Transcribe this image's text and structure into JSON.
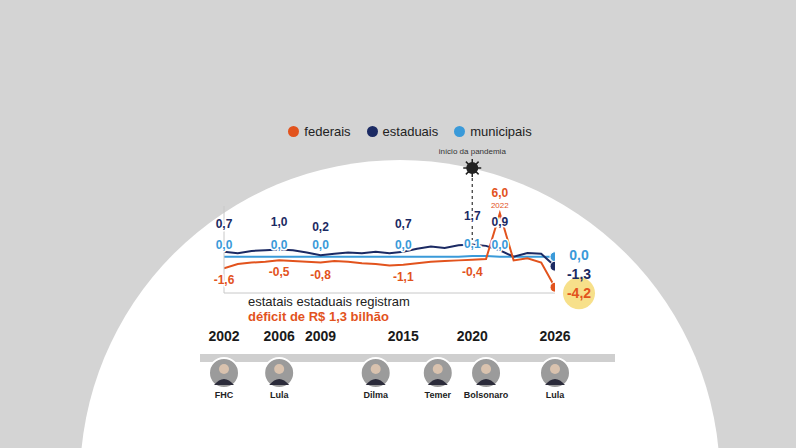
{
  "chart_data": {
    "type": "line",
    "legend": "top",
    "data_labels": true,
    "tick_labels": "x",
    "grid": false,
    "x": [
      2002,
      2003,
      2004,
      2005,
      2006,
      2007,
      2008,
      2009,
      2010,
      2011,
      2012,
      2013,
      2014,
      2015,
      2016,
      2017,
      2018,
      2019,
      2020,
      2021,
      2022,
      2023,
      2024,
      2025,
      2026
    ],
    "xlim": [
      2002,
      2026
    ],
    "xticks": [
      2002,
      2006,
      2009,
      2015,
      2020,
      2026
    ],
    "ylim": [
      -5,
      7
    ],
    "yticks": [],
    "series": [
      {
        "name": "federais",
        "color": "#e2531d",
        "values": [
          -1.6,
          -1.0,
          -0.8,
          -0.7,
          -0.5,
          -0.6,
          -0.7,
          -0.8,
          -0.6,
          -0.7,
          -0.9,
          -1.0,
          -1.2,
          -1.1,
          -0.9,
          -0.7,
          -0.6,
          -0.5,
          -0.4,
          -0.3,
          6.0,
          -0.5,
          -0.2,
          -0.8,
          -4.2
        ],
        "value_labels": [
          "-1,6",
          null,
          null,
          null,
          "-0,5",
          null,
          null,
          "-0,8",
          null,
          null,
          null,
          null,
          null,
          "-1,1",
          null,
          null,
          null,
          null,
          "-0,4",
          null,
          "6,0",
          null,
          null,
          null,
          "-4,2"
        ]
      },
      {
        "name": "estaduais",
        "color": "#1b2a63",
        "values": [
          0.7,
          0.5,
          0.8,
          0.9,
          1.0,
          0.9,
          0.6,
          0.2,
          0.4,
          0.6,
          0.5,
          0.7,
          0.5,
          0.7,
          1.1,
          1.4,
          1.2,
          1.6,
          1.7,
          1.5,
          0.9,
          0.0,
          0.5,
          0.4,
          -1.3
        ],
        "value_labels": [
          "0,7",
          null,
          null,
          null,
          "1,0",
          null,
          null,
          "0,2",
          null,
          null,
          null,
          null,
          null,
          "0,7",
          null,
          null,
          null,
          null,
          "1,7",
          null,
          "0,9",
          null,
          null,
          null,
          "-1,3"
        ]
      },
      {
        "name": "municipais",
        "color": "#3a9ad9",
        "values": [
          0.0,
          0.0,
          0.0,
          0.0,
          0.0,
          0.0,
          0.0,
          0.0,
          0.0,
          0.0,
          0.0,
          0.0,
          0.0,
          0.0,
          0.0,
          0.0,
          0.0,
          0.0,
          0.1,
          0.1,
          0.0,
          0.0,
          0.0,
          0.0,
          0.0
        ],
        "value_labels": [
          "0,0",
          null,
          null,
          null,
          "0,0",
          null,
          null,
          "0,0",
          null,
          null,
          null,
          null,
          null,
          "0,0",
          null,
          null,
          null,
          null,
          "0,1",
          null,
          "0,0",
          null,
          null,
          null,
          "0,0"
        ]
      }
    ],
    "annotations": [
      {
        "text": "início da pandemia",
        "x": 2020
      },
      {
        "text": "2022",
        "x": 2022,
        "y": 6.0
      }
    ],
    "callout": [
      "estatais estaduais registram",
      "déficit de R$ 1,3 bilhão"
    ],
    "presidents": [
      {
        "name": "FHC",
        "x": 2002
      },
      {
        "name": "Lula",
        "x": 2006
      },
      {
        "name": "Dilma",
        "x": 2013
      },
      {
        "name": "Temer",
        "x": 2017.5
      },
      {
        "name": "Bolsonaro",
        "x": 2021
      },
      {
        "name": "Lula",
        "x": 2026
      }
    ]
  }
}
